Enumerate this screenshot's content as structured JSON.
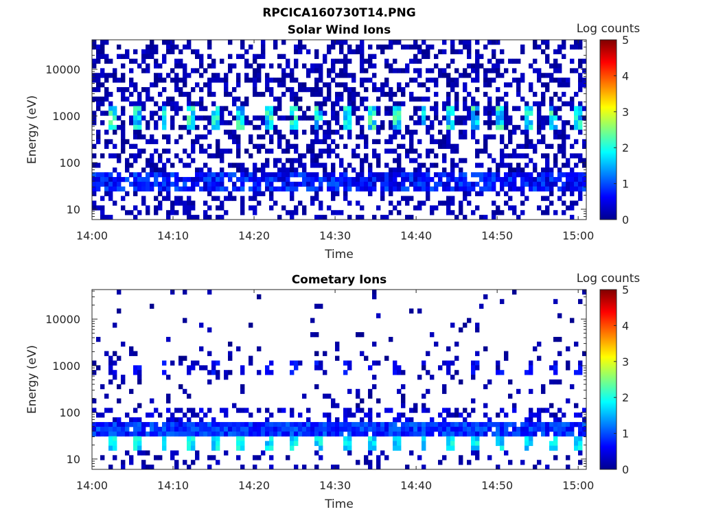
{
  "figure": {
    "title": "RPCICA160730T14.PNG"
  },
  "chart_data": [
    {
      "type": "heatmap",
      "title": "Solar Wind Ions",
      "xlabel": "Time",
      "ylabel": "Energy (eV)",
      "x_ticks": [
        "14:00",
        "14:10",
        "14:20",
        "14:30",
        "14:40",
        "14:50",
        "15:00"
      ],
      "xlim": [
        "14:00",
        "15:01"
      ],
      "y_ticks": [
        "10",
        "100",
        "1000",
        "10000"
      ],
      "ylim": [
        6,
        43000
      ],
      "yscale": "log",
      "colorbar": {
        "label": "Log counts",
        "ticks": [
          "0",
          "1",
          "2",
          "3",
          "4",
          "5"
        ],
        "range": [
          0,
          5
        ],
        "colormap": "jet"
      },
      "features": [
        {
          "description": "broad scattered background counts",
          "energy_range_eV": [
            6,
            43000
          ],
          "log_counts": [
            0,
            0.5
          ]
        },
        {
          "description": "persistent band",
          "energy_range_eV": [
            25,
            55
          ],
          "log_counts": [
            0.5,
            1.0
          ]
        },
        {
          "description": "periodic peaks every ~3 min",
          "energy_eV": 900,
          "log_counts": [
            1.5,
            2.5
          ]
        }
      ]
    },
    {
      "type": "heatmap",
      "title": "Cometary Ions",
      "xlabel": "Time",
      "ylabel": "Energy (eV)",
      "x_ticks": [
        "14:00",
        "14:10",
        "14:20",
        "14:30",
        "14:40",
        "14:50",
        "15:00"
      ],
      "xlim": [
        "14:00",
        "15:01"
      ],
      "y_ticks": [
        "10",
        "100",
        "1000",
        "10000"
      ],
      "ylim": [
        6,
        43000
      ],
      "yscale": "log",
      "colorbar": {
        "label": "Log counts",
        "ticks": [
          "0",
          "1",
          "2",
          "3",
          "4",
          "5"
        ],
        "range": [
          0,
          5
        ],
        "colormap": "jet"
      },
      "features": [
        {
          "description": "sparse scattered counts",
          "energy_range_eV": [
            80,
            43000
          ],
          "log_counts": [
            0,
            0.3
          ]
        },
        {
          "description": "continuous band",
          "energy_range_eV": [
            35,
            60
          ],
          "log_counts": [
            0.5,
            1.2
          ]
        },
        {
          "description": "periodic peaks every ~3 min",
          "energy_eV": 20,
          "log_counts": [
            1.5,
            2.0
          ]
        },
        {
          "description": "periodic weak spots",
          "energy_eV": 900,
          "log_counts": [
            0.3,
            0.8
          ]
        }
      ]
    }
  ]
}
